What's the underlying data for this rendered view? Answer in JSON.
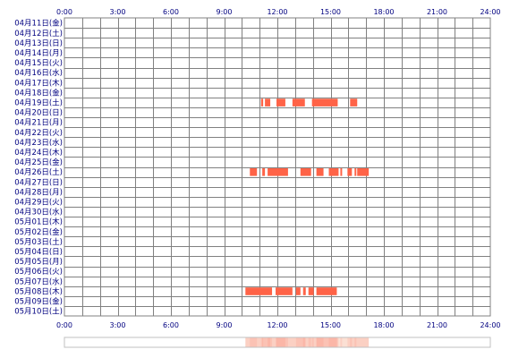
{
  "chart_data": {
    "type": "timeline",
    "title": "",
    "xlabel": "",
    "ylabel": "",
    "x_unit": "hour",
    "xlim": [
      0,
      24
    ],
    "x_ticks": [
      "0:00",
      "3:00",
      "6:00",
      "9:00",
      "12:00",
      "15:00",
      "18:00",
      "21:00",
      "24:00"
    ],
    "grid": true,
    "rows": [
      {
        "label": "04月11日(金)",
        "intervals": []
      },
      {
        "label": "04月12日(土)",
        "intervals": []
      },
      {
        "label": "04月13日(日)",
        "intervals": []
      },
      {
        "label": "04月14日(月)",
        "intervals": []
      },
      {
        "label": "04月15日(火)",
        "intervals": []
      },
      {
        "label": "04月16日(水)",
        "intervals": []
      },
      {
        "label": "04月17日(木)",
        "intervals": []
      },
      {
        "label": "04月18日(金)",
        "intervals": []
      },
      {
        "label": "04月19日(土)",
        "intervals": [
          [
            11.08,
            11.2
          ],
          [
            11.3,
            11.6
          ],
          [
            11.95,
            12.45
          ],
          [
            12.85,
            13.55
          ],
          [
            13.95,
            15.4
          ],
          [
            16.1,
            16.5
          ]
        ]
      },
      {
        "label": "04月20日(日)",
        "intervals": []
      },
      {
        "label": "04月21日(月)",
        "intervals": []
      },
      {
        "label": "04月22日(火)",
        "intervals": []
      },
      {
        "label": "04月23日(水)",
        "intervals": []
      },
      {
        "label": "04月24日(木)",
        "intervals": []
      },
      {
        "label": "04月25日(金)",
        "intervals": []
      },
      {
        "label": "04月26日(土)",
        "intervals": [
          [
            10.45,
            10.85
          ],
          [
            11.15,
            11.3
          ],
          [
            11.45,
            12.6
          ],
          [
            13.3,
            13.9
          ],
          [
            14.2,
            14.6
          ],
          [
            14.9,
            15.45
          ],
          [
            15.55,
            15.65
          ],
          [
            15.95,
            16.2
          ],
          [
            16.35,
            16.45
          ],
          [
            16.5,
            17.15
          ]
        ]
      },
      {
        "label": "04月27日(日)",
        "intervals": []
      },
      {
        "label": "04月28日(月)",
        "intervals": []
      },
      {
        "label": "04月29日(火)",
        "intervals": []
      },
      {
        "label": "04月30日(水)",
        "intervals": []
      },
      {
        "label": "05月01日(木)",
        "intervals": []
      },
      {
        "label": "05月02日(金)",
        "intervals": []
      },
      {
        "label": "05月03日(土)",
        "intervals": []
      },
      {
        "label": "05月04日(日)",
        "intervals": []
      },
      {
        "label": "05月05日(月)",
        "intervals": []
      },
      {
        "label": "05月06日(火)",
        "intervals": []
      },
      {
        "label": "05月07日(水)",
        "intervals": []
      },
      {
        "label": "05月08日(木)",
        "intervals": [
          [
            10.2,
            11.7
          ],
          [
            11.9,
            12.85
          ],
          [
            13.05,
            13.3
          ],
          [
            13.45,
            13.6
          ],
          [
            13.75,
            14.05
          ],
          [
            14.2,
            15.35
          ]
        ]
      },
      {
        "label": "05月09日(金)",
        "intervals": []
      },
      {
        "label": "05月10日(土)",
        "intervals": []
      }
    ],
    "summary_strip": [
      [
        10.2,
        17.15
      ]
    ]
  },
  "colors": {
    "background": "#ffffff",
    "grid": "#808080",
    "label": "#000080",
    "bar": "#ff6347",
    "strip_fill": "#fbe0d4",
    "strip_border": "#c0c0c0"
  }
}
